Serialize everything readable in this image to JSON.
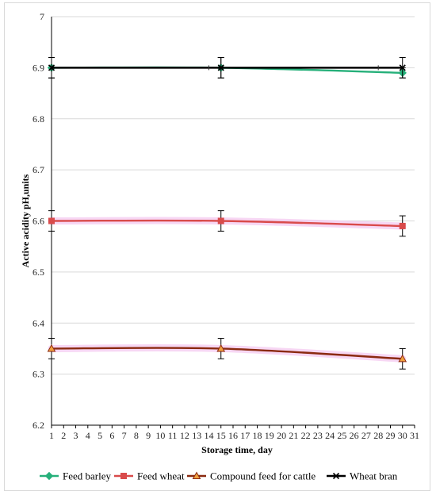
{
  "chart_data": {
    "type": "line",
    "title": "",
    "xlabel": "Storage time, day",
    "ylabel": "Active acidity pH,units",
    "xlim": [
      1,
      31
    ],
    "ylim": [
      6.2,
      7.0
    ],
    "x_ticks": [
      1,
      2,
      3,
      4,
      5,
      6,
      7,
      8,
      9,
      10,
      11,
      12,
      13,
      14,
      15,
      16,
      17,
      18,
      19,
      20,
      21,
      22,
      23,
      24,
      25,
      26,
      27,
      28,
      29,
      30,
      31
    ],
    "y_ticks": [
      6.2,
      6.3,
      6.4,
      6.5,
      6.6,
      6.7,
      6.8,
      6.9,
      7.0
    ],
    "y_tick_labels": [
      "6.2",
      "6.3",
      "6.4",
      "6.5",
      "6.6",
      "6.7",
      "6.8",
      "6.9",
      "7"
    ],
    "grid": "horizontal",
    "legend_position": "bottom",
    "series": [
      {
        "name": "Feed barley",
        "color": "#26b07a",
        "marker": "diamond",
        "x": [
          1,
          15,
          30
        ],
        "y": [
          6.9,
          6.9,
          6.89
        ],
        "err": [
          0.02,
          0.02,
          0.01
        ]
      },
      {
        "name": "Feed wheat",
        "color": "#d94b4b",
        "marker": "square",
        "x": [
          1,
          15,
          30
        ],
        "y": [
          6.6,
          6.6,
          6.59
        ],
        "err": [
          0.02,
          0.02,
          0.02
        ]
      },
      {
        "name": "Compound feed for cattle",
        "color": "#8b2a10",
        "marker": "triangle",
        "x": [
          1,
          15,
          30
        ],
        "y": [
          6.35,
          6.35,
          6.33
        ],
        "err": [
          0.02,
          0.02,
          0.02
        ]
      },
      {
        "name": "Wheat bran",
        "color": "#000000",
        "marker": "x",
        "x": [
          1,
          15,
          30
        ],
        "y": [
          6.9,
          6.9,
          6.9
        ],
        "err": [
          0.02,
          0.02,
          0.02
        ]
      }
    ]
  },
  "colors": {
    "grid": "#d9d9d9",
    "axis": "#000000",
    "shadow_highlight": "#f3c6ef"
  }
}
